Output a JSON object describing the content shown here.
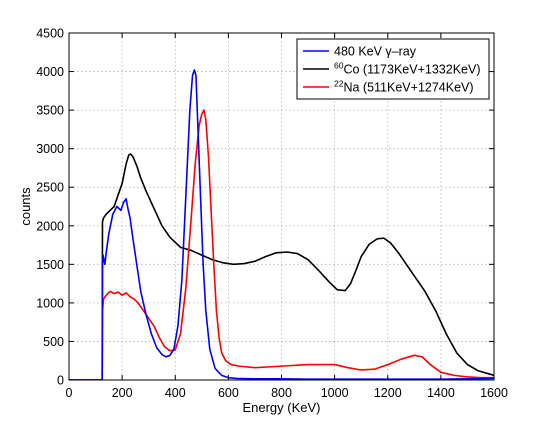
{
  "chart_data": {
    "type": "line",
    "xlabel": "Energy (KeV)",
    "ylabel": "counts",
    "xlim": [
      0,
      1600
    ],
    "ylim": [
      0,
      4500
    ],
    "xticks": [
      0,
      200,
      400,
      600,
      800,
      1000,
      1200,
      1400,
      1600
    ],
    "yticks": [
      0,
      500,
      1000,
      1500,
      2000,
      2500,
      3000,
      3500,
      4000,
      4500
    ],
    "xtick_labels": [
      "0",
      "200",
      "400",
      "600",
      "800",
      "1000",
      "1200",
      "1400",
      "1600"
    ],
    "ytick_labels": [
      "0",
      "500",
      "1000",
      "1500",
      "2000",
      "2500",
      "3000",
      "3500",
      "4000",
      "4500"
    ],
    "grid": true,
    "legend_position": "top-right",
    "series": [
      {
        "name": "480 KeV γ–ray",
        "legend_sup": "",
        "legend_text": "480 KeV γ–ray",
        "color": "#0000ff",
        "x": [
          0,
          125,
          126,
          128,
          135,
          140,
          150,
          165,
          180,
          195,
          205,
          215,
          222,
          230,
          240,
          255,
          270,
          290,
          310,
          330,
          350,
          365,
          380,
          395,
          410,
          425,
          440,
          455,
          465,
          472,
          478,
          485,
          495,
          505,
          515,
          530,
          550,
          575,
          600,
          630,
          700,
          800,
          900,
          1000,
          1100,
          1200,
          1300,
          1400,
          1500,
          1600
        ],
        "y": [
          0,
          0,
          1450,
          1620,
          1500,
          1650,
          1900,
          2150,
          2250,
          2200,
          2300,
          2350,
          2220,
          2100,
          1850,
          1500,
          1150,
          850,
          600,
          420,
          330,
          300,
          320,
          400,
          700,
          1300,
          2400,
          3500,
          3950,
          4020,
          3950,
          3300,
          2400,
          1500,
          900,
          400,
          150,
          60,
          30,
          20,
          15,
          15,
          10,
          10,
          10,
          10,
          10,
          10,
          15,
          20
        ]
      },
      {
        "name": "60Co (1173KeV+1332KeV)",
        "legend_sup": "60",
        "legend_text": "Co (1173KeV+1332KeV)",
        "color": "#000000",
        "x": [
          0,
          125,
          126,
          130,
          140,
          155,
          170,
          185,
          200,
          215,
          225,
          232,
          240,
          255,
          270,
          290,
          310,
          330,
          350,
          380,
          420,
          460,
          500,
          540,
          580,
          620,
          660,
          700,
          740,
          780,
          820,
          860,
          900,
          940,
          980,
          1010,
          1040,
          1060,
          1080,
          1100,
          1130,
          1160,
          1185,
          1210,
          1240,
          1270,
          1300,
          1340,
          1380,
          1420,
          1460,
          1500,
          1540,
          1580,
          1600
        ],
        "y": [
          0,
          0,
          2050,
          2100,
          2150,
          2200,
          2250,
          2400,
          2550,
          2800,
          2920,
          2930,
          2900,
          2780,
          2620,
          2450,
          2300,
          2150,
          2000,
          1850,
          1720,
          1680,
          1620,
          1560,
          1520,
          1500,
          1510,
          1540,
          1600,
          1650,
          1660,
          1640,
          1560,
          1420,
          1270,
          1170,
          1160,
          1250,
          1420,
          1600,
          1760,
          1830,
          1840,
          1780,
          1650,
          1500,
          1350,
          1150,
          900,
          600,
          350,
          200,
          120,
          80,
          60
        ]
      },
      {
        "name": "22Na (511KeV+1274KeV)",
        "legend_sup": "22",
        "legend_text": "Na (511KeV+1274KeV)",
        "color": "#ff0000",
        "x": [
          0,
          125,
          126,
          130,
          140,
          155,
          170,
          185,
          200,
          215,
          230,
          245,
          260,
          280,
          300,
          320,
          340,
          360,
          380,
          400,
          420,
          440,
          460,
          475,
          490,
          500,
          508,
          515,
          525,
          535,
          545,
          555,
          565,
          575,
          590,
          610,
          640,
          700,
          800,
          900,
          1000,
          1050,
          1100,
          1150,
          1200,
          1250,
          1300,
          1330,
          1360,
          1400,
          1450,
          1500,
          1550,
          1600
        ],
        "y": [
          0,
          0,
          900,
          1050,
          1100,
          1150,
          1120,
          1140,
          1100,
          1130,
          1080,
          1050,
          1000,
          900,
          800,
          700,
          550,
          430,
          380,
          390,
          600,
          1200,
          2100,
          2800,
          3300,
          3450,
          3500,
          3380,
          2900,
          2200,
          1500,
          900,
          550,
          350,
          250,
          200,
          180,
          160,
          180,
          200,
          200,
          160,
          130,
          140,
          200,
          270,
          320,
          300,
          200,
          100,
          60,
          40,
          30,
          30
        ]
      }
    ]
  }
}
